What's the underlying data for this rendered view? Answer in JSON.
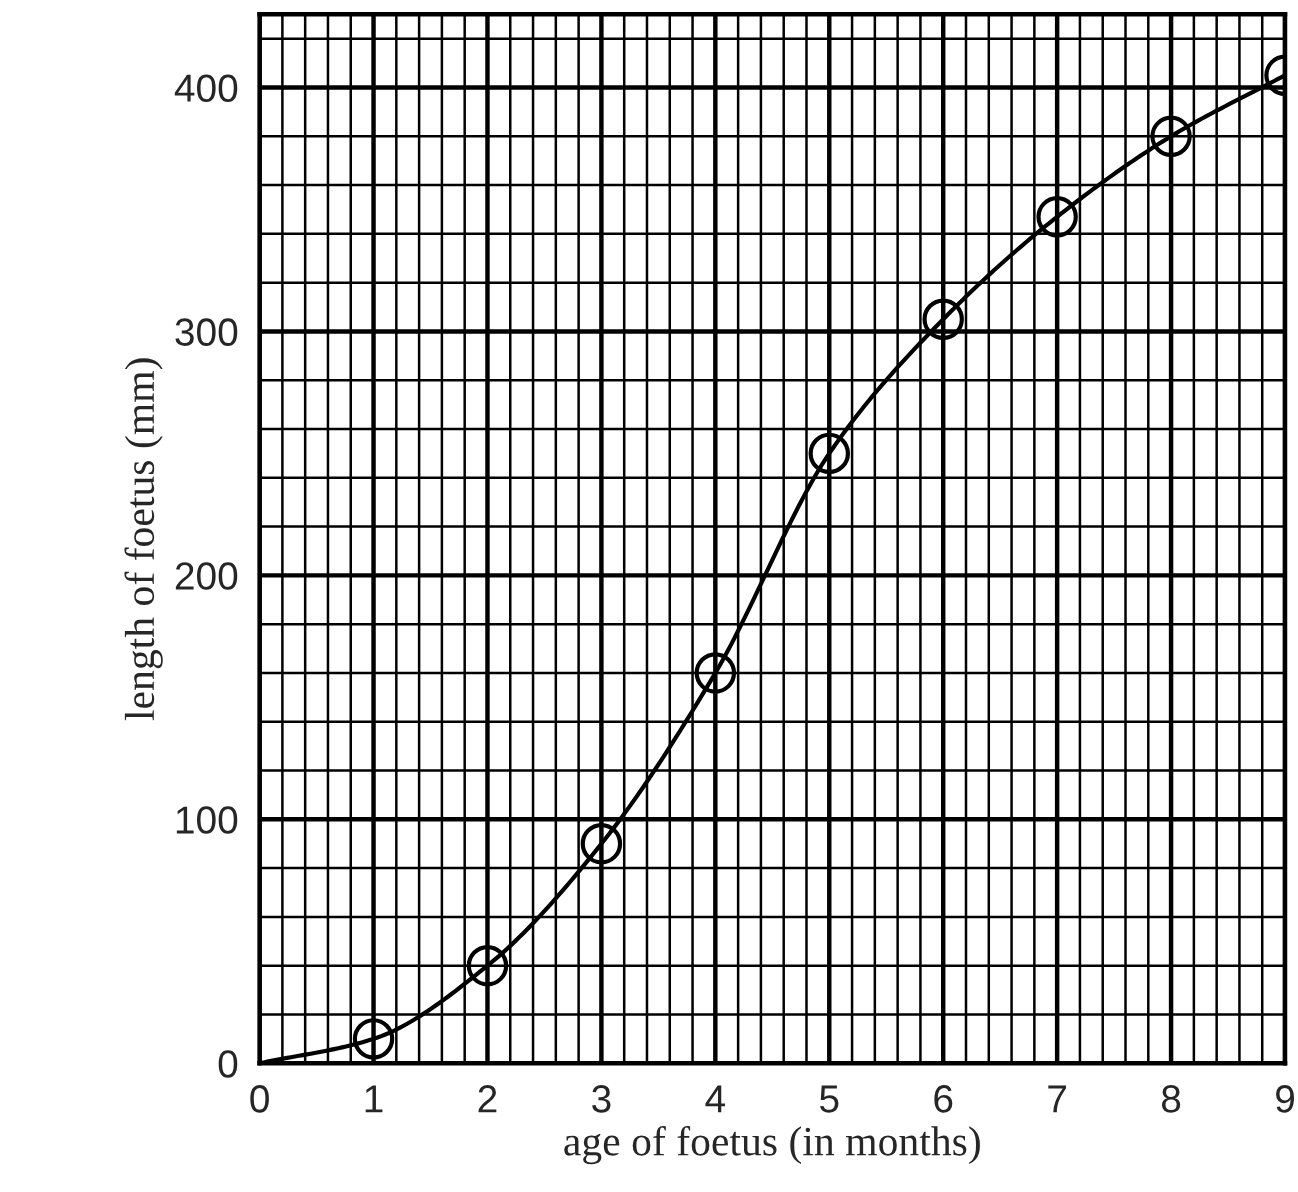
{
  "chart_data": {
    "type": "line",
    "xlabel": "age of foetus (in months)",
    "ylabel": "length of foetus (mm)",
    "xlim": [
      0,
      9
    ],
    "ylim": [
      0,
      430
    ],
    "xticks": [
      0,
      1,
      2,
      3,
      4,
      5,
      6,
      7,
      8,
      9
    ],
    "yticks": [
      0,
      100,
      200,
      300,
      400
    ],
    "grid": true,
    "series": [
      {
        "color": "#000000",
        "x": [
          0,
          1,
          2,
          3,
          4,
          5,
          6,
          7,
          8,
          9
        ],
        "values": [
          0,
          10,
          40,
          90,
          160,
          250,
          305,
          347,
          380,
          405
        ],
        "marker": "none",
        "line_style": "solid"
      },
      {
        "type": "scatter",
        "color": "#000000",
        "x": [
          1,
          2,
          3,
          4,
          5,
          6,
          7,
          8,
          9
        ],
        "values": [
          10,
          40,
          90,
          160,
          250,
          305,
          347,
          380,
          405
        ],
        "marker": "circle"
      }
    ]
  }
}
